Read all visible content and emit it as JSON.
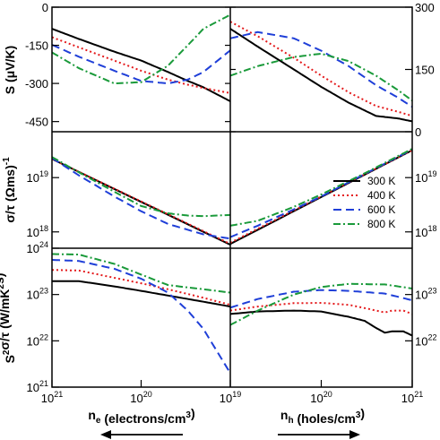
{
  "chart_data": [
    {
      "type": "line",
      "panel": "S-electrons",
      "ylabel": "S (μV/K)",
      "xscale": "log-reversed",
      "xlim": [
        1e+21,
        1e+19
      ],
      "ylim": [
        -490,
        0
      ],
      "yticks": [
        "0",
        "-150",
        "-300",
        "-450"
      ],
      "series": [
        {
          "name": "300 K",
          "x": [
            1e+21,
            5e+20,
            2e+20,
            1e+20,
            5e+19,
            3e+19,
            2e+19,
            1e+19
          ],
          "y": [
            -85,
            -125,
            -175,
            -210,
            -255,
            -290,
            -315,
            -370
          ]
        },
        {
          "name": "400 K",
          "x": [
            1e+21,
            5e+20,
            2e+20,
            1e+20,
            5e+19,
            3e+19,
            2e+19,
            1e+19
          ],
          "y": [
            -118,
            -158,
            -210,
            -250,
            -285,
            -305,
            -318,
            -338
          ]
        },
        {
          "name": "600 K",
          "x": [
            1e+21,
            5e+20,
            2e+20,
            1e+20,
            5e+19,
            3e+19,
            2e+19,
            1e+19
          ],
          "y": [
            -148,
            -195,
            -250,
            -290,
            -300,
            -285,
            -255,
            -170
          ]
        },
        {
          "name": "800 K",
          "x": [
            1e+21,
            5e+20,
            2e+20,
            1e+20,
            5e+19,
            3e+19,
            2e+19,
            1e+19
          ],
          "y": [
            -178,
            -240,
            -300,
            -295,
            -230,
            -150,
            -85,
            -30
          ]
        }
      ]
    },
    {
      "type": "line",
      "panel": "S-holes",
      "xscale": "log",
      "xlim": [
        1e+19,
        1e+21
      ],
      "ylim": [
        0,
        300
      ],
      "yticks": [
        "300",
        "150",
        "0"
      ],
      "series": [
        {
          "name": "300 K",
          "x": [
            1e+19,
            2e+19,
            5e+19,
            1e+20,
            2e+20,
            4e+20,
            7e+20,
            1e+21
          ],
          "y": [
            248,
            205,
            150,
            108,
            70,
            38,
            32,
            25
          ]
        },
        {
          "name": "400 K",
          "x": [
            1e+19,
            2e+19,
            5e+19,
            1e+20,
            2e+20,
            4e+20,
            7e+20,
            1e+21
          ],
          "y": [
            265,
            230,
            178,
            135,
            95,
            62,
            48,
            38
          ]
        },
        {
          "name": "600 K",
          "x": [
            1e+19,
            2e+19,
            5e+19,
            1e+20,
            2e+20,
            4e+20,
            7e+20,
            1e+21
          ],
          "y": [
            225,
            240,
            225,
            195,
            158,
            112,
            82,
            60
          ]
        },
        {
          "name": "800 K",
          "x": [
            1e+19,
            2e+19,
            5e+19,
            1e+20,
            2e+20,
            4e+20,
            7e+20,
            1e+21
          ],
          "y": [
            135,
            158,
            180,
            188,
            170,
            135,
            100,
            75
          ]
        }
      ]
    },
    {
      "type": "line",
      "panel": "sigma-electrons",
      "ylabel": "σ/τ (Ωms)⁻¹",
      "xscale": "log-reversed",
      "yscale": "log",
      "xlim": [
        1e+21,
        1e+19
      ],
      "ylim": [
        5e+17,
        7e+19
      ],
      "yticks": [
        "10^19",
        "10^18"
      ],
      "series": [
        {
          "name": "300 K",
          "x": [
            1e+21,
            1e+19
          ],
          "y": [
            2.2e+19,
            5.8e+17
          ]
        },
        {
          "name": "400 K",
          "x": [
            1e+21,
            1e+19
          ],
          "y": [
            2.2e+19,
            6e+17
          ]
        },
        {
          "name": "600 K",
          "x": [
            1e+21,
            5e+20,
            2e+20,
            1e+20,
            5e+19,
            2e+19,
            1e+19
          ],
          "y": [
            2.3e+19,
            1.1e+19,
            4.5e+18,
            2.4e+18,
            1.4e+18,
            9e+17,
            7.5e+17
          ]
        },
        {
          "name": "800 K",
          "x": [
            1e+21,
            5e+20,
            2e+20,
            1e+20,
            5e+19,
            3e+19,
            2e+19,
            1e+19
          ],
          "y": [
            2.4e+19,
            1.25e+19,
            5.5e+18,
            3e+18,
            2.2e+18,
            2e+18,
            1.95e+18,
            2.05e+18
          ]
        }
      ]
    },
    {
      "type": "line",
      "panel": "sigma-holes",
      "xscale": "log",
      "yscale": "log",
      "xlim": [
        1e+19,
        1e+21
      ],
      "ylim": [
        5e+17,
        7e+19
      ],
      "yticks": [
        "10^19",
        "10^18"
      ],
      "series": [
        {
          "name": "300 K",
          "x": [
            1e+19,
            1e+21
          ],
          "y": [
            6e+17,
            3.2e+19
          ]
        },
        {
          "name": "400 K",
          "x": [
            1e+19,
            1e+21
          ],
          "y": [
            6.3e+17,
            3.2e+19
          ]
        },
        {
          "name": "600 K",
          "x": [
            1e+19,
            2e+19,
            5e+19,
            1e+20,
            1e+21
          ],
          "y": [
            8e+17,
            1.3e+18,
            2.6e+18,
            4.5e+18,
            3.3e+19
          ]
        },
        {
          "name": "800 K",
          "x": [
            1e+19,
            2e+19,
            5e+19,
            1e+20,
            3e+20,
            1e+21
          ],
          "y": [
            1.3e+18,
            1.6e+18,
            2.9e+18,
            4.9e+18,
            1.2e+19,
            3.4e+19
          ]
        }
      ]
    },
    {
      "type": "line",
      "panel": "power-factor-electrons",
      "ylabel": "S²σ/τ (W/mK²s)",
      "xlabel": "n_e (electrons/cm³)",
      "xscale": "log-reversed",
      "yscale": "log",
      "xlim": [
        1e+21,
        1e+19
      ],
      "ylim": [
        1e+21,
        1e+24
      ],
      "yticks": [
        "10^24",
        "10^23",
        "10^22",
        "10^21"
      ],
      "xticks": [
        "10^21",
        "10^20",
        "10^19"
      ],
      "series": [
        {
          "name": "300 K",
          "x": [
            1e+21,
            5e+20,
            2e+20,
            1e+20,
            5e+19,
            2e+19,
            1e+19
          ],
          "y": [
            1.95e+23,
            1.95e+23,
            1.5e+23,
            1.2e+23,
            9.5e+22,
            7e+22,
            5.5e+22
          ]
        },
        {
          "name": "400 K",
          "x": [
            1e+21,
            5e+20,
            2e+20,
            1e+20,
            5e+19,
            2e+19,
            1e+19
          ],
          "y": [
            3.4e+23,
            3.3e+23,
            2.3e+23,
            1.75e+23,
            1.3e+23,
            8.5e+22,
            6e+22
          ]
        },
        {
          "name": "600 K",
          "x": [
            1e+21,
            5e+20,
            2e+20,
            1e+20,
            5e+19,
            3e+19,
            2e+19,
            1e+19
          ],
          "y": [
            5.6e+23,
            5.3e+23,
            3.6e+23,
            2.2e+23,
            1.1e+23,
            4.5e+22,
            1.8e+22,
            2e+21
          ]
        },
        {
          "name": "800 K",
          "x": [
            1e+21,
            5e+20,
            2e+20,
            1e+20,
            5e+19,
            2e+19,
            1e+19
          ],
          "y": [
            7.5e+23,
            7.3e+23,
            4.6e+23,
            2.7e+23,
            1.6e+23,
            1.3e+23,
            1.1e+23
          ]
        }
      ]
    },
    {
      "type": "line",
      "panel": "power-factor-holes",
      "xlabel": "n_h (holes/cm³)",
      "xscale": "log",
      "yscale": "log",
      "xlim": [
        1e+19,
        1e+21
      ],
      "ylim": [
        1e+21,
        1e+24
      ],
      "yticks": [
        "10^23",
        "10^22"
      ],
      "xticks": [
        "10^19",
        "10^20",
        "10^21"
      ],
      "series": [
        {
          "name": "300 K",
          "x": [
            1e+19,
            2e+19,
            5e+19,
            1e+20,
            2e+20,
            3e+20,
            4e+20,
            5e+20,
            6e+20,
            8e+20,
            1e+21
          ],
          "y": [
            3.8e+22,
            4.3e+22,
            4.5e+22,
            4.3e+22,
            3.3e+22,
            2.7e+22,
            1.9e+22,
            1.5e+22,
            1.6e+22,
            1.6e+22,
            1.3e+22
          ]
        },
        {
          "name": "400 K",
          "x": [
            1e+19,
            2e+19,
            5e+19,
            1e+20,
            2e+20,
            3e+20,
            4e+20,
            5e+20,
            6e+20,
            8e+20,
            1e+21
          ],
          "y": [
            4.5e+22,
            5.5e+22,
            6.5e+22,
            6.6e+22,
            6e+22,
            5.1e+22,
            4.5e+22,
            4.1e+22,
            4.5e+22,
            4.5e+22,
            3.8e+22
          ]
        },
        {
          "name": "600 K",
          "x": [
            1e+19,
            2e+19,
            5e+19,
            1e+20,
            2e+20,
            5e+20,
            1e+21
          ],
          "y": [
            5.2e+22,
            8e+22,
            1.15e+23,
            1.25e+23,
            1.2e+23,
            1.05e+23,
            7.5e+22
          ]
        },
        {
          "name": "800 K",
          "x": [
            1e+19,
            2e+19,
            5e+19,
            1e+20,
            2e+20,
            5e+20,
            1e+21
          ],
          "y": [
            2.2e+22,
            4.5e+22,
            1e+23,
            1.45e+23,
            1.7e+23,
            1.65e+23,
            1.35e+23
          ]
        }
      ]
    }
  ],
  "legend": {
    "placement": "right-middle",
    "entries": [
      {
        "label": "300 K",
        "color": "#000000",
        "dash": "solid"
      },
      {
        "label": "400 K",
        "color": "#e41a1c",
        "dash": "dotted"
      },
      {
        "label": "600 K",
        "color": "#1f3fd8",
        "dash": "dashed"
      },
      {
        "label": "800 K",
        "color": "#1a9a3a",
        "dash": "dashdot"
      }
    ]
  },
  "labels": {
    "x_left": "n_e (electrons/cm^3)",
    "x_right": "n_h (holes/cm^3)",
    "y_top": "S (μV/K)",
    "y_mid": "σ/τ (Ωms)^-1",
    "y_bot": "S^2σ/τ (W/mK^2s)"
  },
  "arrows": {
    "left": "left-arrow",
    "right": "right-arrow"
  }
}
